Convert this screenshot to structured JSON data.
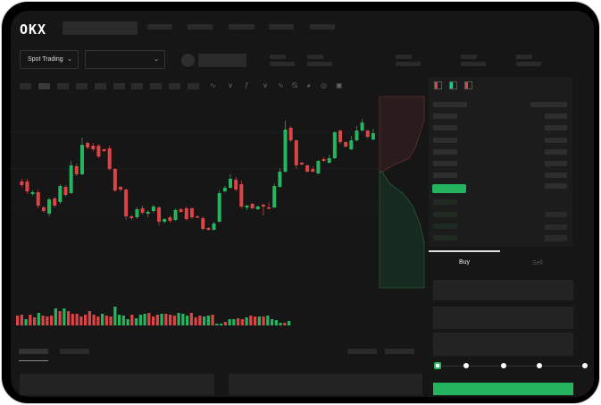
{
  "header": {
    "logo": "OKX",
    "market_dropdown": "Spot Trading",
    "pair_dropdown": ""
  },
  "icons": {
    "toolbar": [
      "line-icon",
      "indicator-icon",
      "fx-icon",
      "wave-icon",
      "ruler-icon",
      "camera-icon",
      "settings-icon",
      "fullscreen-icon"
    ],
    "orderbook_views": [
      "orderbook-both-icon",
      "orderbook-bids-icon",
      "orderbook-asks-icon"
    ]
  },
  "colors": {
    "up": "#27b45f",
    "down": "#dc4446",
    "background": "#161616",
    "panel": "#1c1c1c"
  },
  "trade": {
    "buy_tab": "Buy",
    "sell_tab": "Sell",
    "active_tab": "Buy",
    "leverage_slider": 0
  },
  "chart_data": {
    "type": "candlestick",
    "ohlc": [
      [
        57,
        60,
        50,
        53
      ],
      [
        57,
        60,
        43,
        46
      ],
      [
        43,
        47,
        41,
        45
      ],
      [
        45,
        48,
        27,
        30
      ],
      [
        28,
        30,
        22,
        24
      ],
      [
        21,
        39,
        18,
        37
      ],
      [
        38,
        40,
        28,
        30
      ],
      [
        34,
        54,
        32,
        52
      ],
      [
        51,
        53,
        40,
        42
      ],
      [
        44,
        80,
        43,
        75
      ],
      [
        74,
        77,
        63,
        65
      ],
      [
        65,
        106,
        64,
        98
      ],
      [
        100,
        102,
        93,
        95
      ],
      [
        97,
        100,
        91,
        93
      ],
      [
        97,
        99,
        83,
        85
      ],
      [
        93,
        94,
        90,
        91
      ],
      [
        94,
        97,
        69,
        71
      ],
      [
        71,
        72,
        45,
        47
      ],
      [
        51,
        52,
        46,
        48
      ],
      [
        48,
        49,
        14,
        18
      ],
      [
        18,
        20,
        14,
        16
      ],
      [
        17,
        28,
        15,
        26
      ],
      [
        27,
        30,
        20,
        22
      ],
      [
        21,
        25,
        17,
        23
      ],
      [
        24,
        31,
        22,
        29
      ],
      [
        28,
        29,
        8,
        12
      ],
      [
        12,
        16,
        10,
        15
      ],
      [
        17,
        19,
        11,
        13
      ],
      [
        14,
        27,
        13,
        25
      ],
      [
        26,
        27,
        22,
        23
      ],
      [
        27,
        29,
        13,
        15
      ],
      [
        27,
        28,
        15,
        17
      ],
      [
        18,
        19,
        16,
        17
      ],
      [
        16,
        18,
        2,
        4
      ],
      [
        5,
        6,
        2,
        3
      ],
      [
        3,
        12,
        2,
        10
      ],
      [
        12,
        47,
        11,
        44
      ],
      [
        46,
        52,
        45,
        50
      ],
      [
        50,
        65,
        49,
        60
      ],
      [
        59,
        62,
        46,
        48
      ],
      [
        54,
        58,
        27,
        29
      ],
      [
        28,
        31,
        25,
        30
      ],
      [
        32,
        33,
        26,
        27
      ],
      [
        26,
        30,
        25,
        29
      ],
      [
        31,
        32,
        19,
        29
      ],
      [
        28,
        34,
        26,
        27
      ],
      [
        28,
        55,
        27,
        52
      ],
      [
        51,
        72,
        50,
        68
      ],
      [
        68,
        125,
        67,
        115
      ],
      [
        117,
        119,
        101,
        103
      ],
      [
        103,
        104,
        71,
        75
      ],
      [
        78,
        79,
        75,
        76
      ],
      [
        75,
        76,
        67,
        68
      ],
      [
        71,
        74,
        67,
        68
      ],
      [
        66,
        81,
        65,
        80
      ],
      [
        82,
        84,
        79,
        80
      ],
      [
        78,
        87,
        77,
        83
      ],
      [
        83,
        113,
        82,
        112
      ],
      [
        114,
        115,
        99,
        101
      ],
      [
        101,
        102,
        95,
        96
      ],
      [
        93,
        108,
        92,
        103
      ],
      [
        103,
        119,
        102,
        114
      ],
      [
        114,
        127,
        113,
        123
      ],
      [
        114,
        115,
        105,
        107
      ],
      [
        104,
        116,
        103,
        111
      ]
    ],
    "volume": [
      [
        11,
        "d"
      ],
      [
        12,
        "d"
      ],
      [
        7,
        "u"
      ],
      [
        12,
        "d"
      ],
      [
        9,
        "d"
      ],
      [
        14,
        "u"
      ],
      [
        11,
        "d"
      ],
      [
        10,
        "d"
      ],
      [
        11,
        "d"
      ],
      [
        19,
        "u"
      ],
      [
        16,
        "d"
      ],
      [
        19,
        "u"
      ],
      [
        16,
        "d"
      ],
      [
        13,
        "d"
      ],
      [
        13,
        "d"
      ],
      [
        10,
        "d"
      ],
      [
        12,
        "d"
      ],
      [
        16,
        "d"
      ],
      [
        12,
        "d"
      ],
      [
        10,
        "d"
      ],
      [
        13,
        "u"
      ],
      [
        11,
        "d"
      ],
      [
        10,
        "d"
      ],
      [
        21,
        "u"
      ],
      [
        12,
        "u"
      ],
      [
        11,
        "u"
      ],
      [
        7,
        "u"
      ],
      [
        12,
        "d"
      ],
      [
        8,
        "u"
      ],
      [
        12,
        "u"
      ],
      [
        13,
        "u"
      ],
      [
        14,
        "d"
      ],
      [
        10,
        "d"
      ],
      [
        12,
        "d"
      ],
      [
        13,
        "u"
      ],
      [
        13,
        "d"
      ],
      [
        12,
        "d"
      ],
      [
        11,
        "d"
      ],
      [
        14,
        "u"
      ],
      [
        13,
        "u"
      ],
      [
        11,
        "u"
      ],
      [
        14,
        "d"
      ],
      [
        9,
        "d"
      ],
      [
        11,
        "d"
      ],
      [
        10,
        "u"
      ],
      [
        11,
        "u"
      ],
      [
        12,
        "d"
      ],
      [
        2,
        "u"
      ],
      [
        2,
        "u"
      ],
      [
        4,
        "d"
      ],
      [
        7,
        "u"
      ],
      [
        7,
        "u"
      ],
      [
        8,
        "d"
      ],
      [
        7,
        "d"
      ],
      [
        9,
        "u"
      ],
      [
        11,
        "d"
      ],
      [
        10,
        "d"
      ],
      [
        10,
        "u"
      ],
      [
        10,
        "d"
      ],
      [
        11,
        "u"
      ],
      [
        7,
        "u"
      ],
      [
        6,
        "u"
      ],
      [
        3,
        "u"
      ],
      [
        3,
        "d"
      ],
      [
        5,
        "u"
      ]
    ]
  }
}
